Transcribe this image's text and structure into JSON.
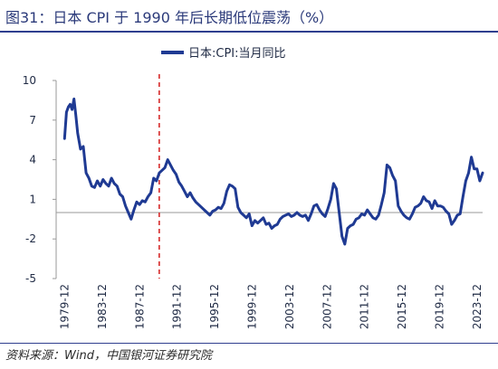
{
  "figure": {
    "title": "图31：日本 CPI 于 1990 年后长期低位震荡（%）",
    "source": "资料来源：Wind，中国银河证券研究院"
  },
  "colors": {
    "series": "#1f3a93",
    "marker": "#d62a2a",
    "axis": "#9a9a9a",
    "title": "#2b3a7a"
  },
  "chart_data": {
    "type": "line",
    "title": "",
    "xlabel": "",
    "ylabel": "",
    "ylim": [
      -5,
      10
    ],
    "yticks": [
      10,
      7,
      4,
      1,
      -2,
      -5
    ],
    "xlim": [
      1979.0,
      2024.5
    ],
    "x_tick_labels": [
      "1979-12",
      "1983-12",
      "1987-12",
      "1991-12",
      "1995-12",
      "1999-12",
      "2003-12",
      "2007-12",
      "2011-12",
      "2015-12",
      "2019-12",
      "2023-12"
    ],
    "x_tick_values": [
      1979.917,
      1983.917,
      1987.917,
      1991.917,
      1995.917,
      1999.917,
      2003.917,
      2007.917,
      2011.917,
      2015.917,
      2019.917,
      2023.917
    ],
    "grid": false,
    "legend": "top-center",
    "reference_line": {
      "x": 1990.0,
      "style": "dashed"
    },
    "series": [
      {
        "name": "日本:CPI:当月同比",
        "x": [
          1979.9,
          1980.1,
          1980.3,
          1980.5,
          1980.7,
          1980.9,
          1981.1,
          1981.3,
          1981.6,
          1981.9,
          1982.2,
          1982.5,
          1982.8,
          1983.1,
          1983.4,
          1983.7,
          1984.0,
          1984.3,
          1984.6,
          1984.9,
          1985.2,
          1985.5,
          1985.8,
          1986.1,
          1986.4,
          1986.7,
          1987.0,
          1987.3,
          1987.6,
          1987.9,
          1988.2,
          1988.5,
          1988.8,
          1989.1,
          1989.4,
          1989.7,
          1990.0,
          1990.3,
          1990.6,
          1990.9,
          1991.2,
          1991.5,
          1991.8,
          1992.1,
          1992.4,
          1992.7,
          1993.0,
          1993.3,
          1993.6,
          1993.9,
          1994.2,
          1994.5,
          1994.8,
          1995.1,
          1995.4,
          1995.7,
          1996.0,
          1996.3,
          1996.6,
          1996.9,
          1997.2,
          1997.5,
          1997.8,
          1998.1,
          1998.4,
          1998.7,
          1999.0,
          1999.3,
          1999.6,
          1999.9,
          2000.2,
          2000.5,
          2000.8,
          2001.1,
          2001.4,
          2001.7,
          2002.0,
          2002.3,
          2002.6,
          2002.9,
          2003.2,
          2003.5,
          2003.8,
          2004.1,
          2004.4,
          2004.7,
          2005.0,
          2005.3,
          2005.6,
          2005.9,
          2006.2,
          2006.5,
          2006.8,
          2007.1,
          2007.4,
          2007.7,
          2008.0,
          2008.3,
          2008.6,
          2008.9,
          2009.2,
          2009.5,
          2009.8,
          2010.1,
          2010.4,
          2010.7,
          2011.0,
          2011.3,
          2011.6,
          2011.9,
          2012.2,
          2012.5,
          2012.8,
          2013.1,
          2013.4,
          2013.7,
          2014.0,
          2014.3,
          2014.6,
          2014.9,
          2015.2,
          2015.5,
          2015.8,
          2016.1,
          2016.4,
          2016.7,
          2017.0,
          2017.3,
          2017.6,
          2017.9,
          2018.2,
          2018.5,
          2018.8,
          2019.1,
          2019.4,
          2019.7,
          2020.0,
          2020.3,
          2020.6,
          2020.9,
          2021.2,
          2021.5,
          2021.8,
          2022.1,
          2022.4,
          2022.7,
          2023.0,
          2023.3,
          2023.6,
          2023.9,
          2024.2,
          2024.5
        ],
        "values": [
          5.6,
          7.6,
          8.0,
          8.2,
          7.8,
          8.6,
          7.4,
          6.0,
          4.8,
          5.0,
          3.0,
          2.6,
          2.0,
          1.9,
          2.4,
          2.0,
          2.5,
          2.2,
          2.0,
          2.6,
          2.2,
          2.0,
          1.4,
          1.2,
          0.5,
          0.0,
          -0.5,
          0.2,
          0.8,
          0.6,
          0.9,
          0.8,
          1.2,
          1.5,
          2.6,
          2.4,
          3.0,
          3.2,
          3.4,
          4.0,
          3.6,
          3.2,
          2.9,
          2.3,
          2.0,
          1.6,
          1.2,
          1.5,
          1.1,
          0.8,
          0.6,
          0.4,
          0.2,
          0.0,
          -0.2,
          0.1,
          0.2,
          0.4,
          0.3,
          0.7,
          1.6,
          2.1,
          2.0,
          1.8,
          0.4,
          0.0,
          -0.2,
          -0.4,
          -0.1,
          -1.0,
          -0.6,
          -0.8,
          -0.6,
          -0.4,
          -0.9,
          -0.8,
          -1.2,
          -1.0,
          -0.9,
          -0.5,
          -0.3,
          -0.2,
          -0.1,
          -0.3,
          -0.2,
          0.0,
          -0.2,
          -0.3,
          -0.2,
          -0.6,
          -0.1,
          0.5,
          0.6,
          0.2,
          -0.1,
          -0.3,
          0.3,
          1.0,
          2.2,
          1.8,
          0.0,
          -1.8,
          -2.4,
          -1.2,
          -1.0,
          -0.9,
          -0.5,
          -0.4,
          -0.1,
          -0.2,
          0.2,
          -0.1,
          -0.4,
          -0.5,
          -0.2,
          0.6,
          1.5,
          3.6,
          3.4,
          2.8,
          2.4,
          0.5,
          0.1,
          -0.2,
          -0.4,
          -0.5,
          -0.1,
          0.4,
          0.5,
          0.7,
          1.2,
          0.9,
          0.8,
          0.3,
          0.9,
          0.5,
          0.5,
          0.4,
          0.1,
          -0.1,
          -0.9,
          -0.6,
          -0.2,
          -0.1,
          1.2,
          2.4,
          3.0,
          4.2,
          3.3,
          3.3,
          2.4,
          3.0
        ]
      }
    ]
  }
}
